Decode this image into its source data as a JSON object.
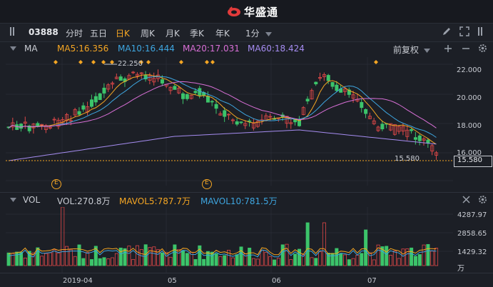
{
  "app": {
    "brand": "华盛通"
  },
  "toolbar": {
    "code": "03888",
    "periods": [
      "分时",
      "五日",
      "日K",
      "周K",
      "月K",
      "季K",
      "年K",
      "1分"
    ],
    "active_period": "日K"
  },
  "main_panel": {
    "indicator": "MA",
    "ma": [
      {
        "label": "MA5:16.356",
        "color": "#f5a623"
      },
      {
        "label": "MA10:16.444",
        "color": "#3ea6e0"
      },
      {
        "label": "MA20:17.031",
        "color": "#d86fd6"
      },
      {
        "label": "MA60:18.424",
        "color": "#a58cf0"
      }
    ],
    "adjust": "前复权",
    "y_ticks": [
      "22.000",
      "20.000",
      "18.000",
      "16.000"
    ],
    "high_label": "22.250",
    "low_label": "15.580",
    "current_price": "15.580",
    "event_marker": "E"
  },
  "volume_panel": {
    "indicator": "VOL",
    "vol": "VOL:270.8万",
    "mavol5": "MAVOL5:787.7万",
    "mavol10": "MAVOL10:781.5万",
    "y_ticks": [
      "4287.97",
      "2858.65",
      "1429.32",
      "万"
    ]
  },
  "x_axis": {
    "labels": [
      "2019-04",
      "05",
      "06",
      "07"
    ]
  },
  "colors": {
    "up": "#e04848",
    "down": "#3cc46a",
    "ma5": "#f5a623",
    "ma10": "#3ea6e0",
    "ma20": "#d86fd6",
    "ma60": "#a58cf0",
    "accent": "#f5a623"
  }
}
